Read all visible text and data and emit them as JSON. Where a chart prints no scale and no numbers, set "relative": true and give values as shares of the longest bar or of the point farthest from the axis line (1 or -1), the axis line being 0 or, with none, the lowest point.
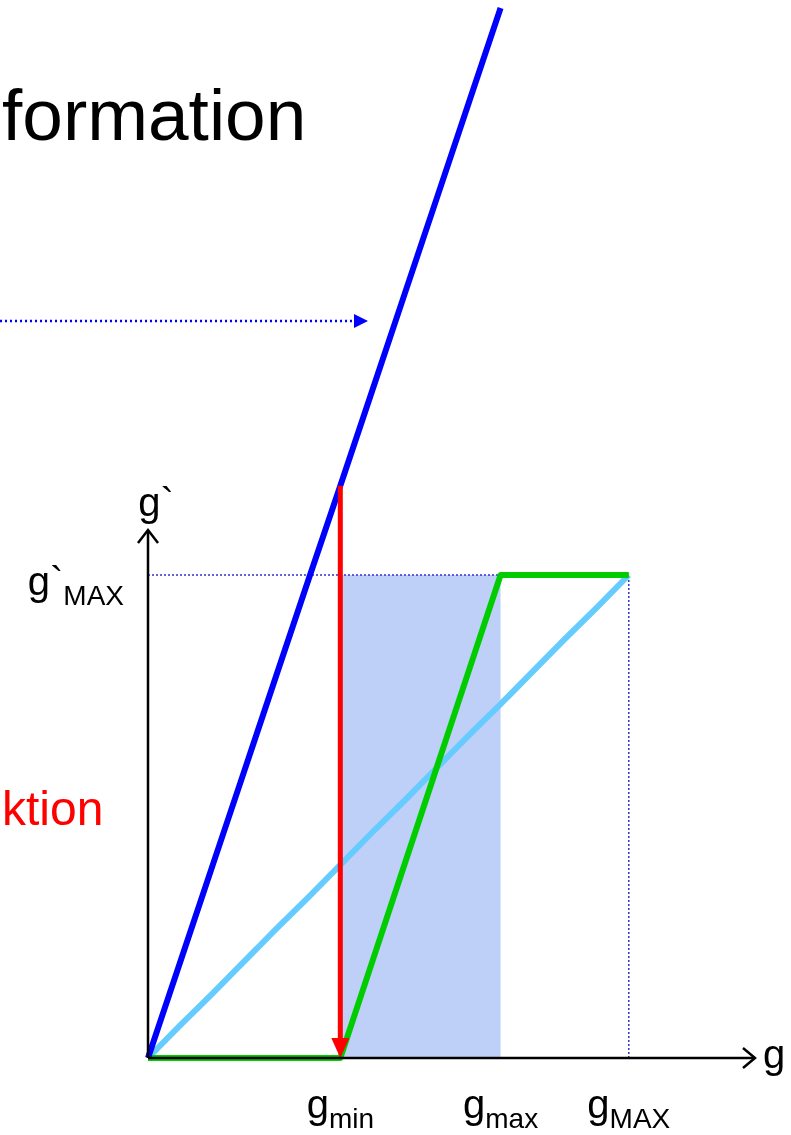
{
  "chart_data": {
    "type": "line",
    "title": "formation",
    "xlabel": "g",
    "ylabel": "g`",
    "relative": true,
    "categories": [
      null,
      null,
      null,
      null,
      null,
      null,
      "g$_{min}$",
      null,
      null,
      null,
      null,
      "g$_{max}$",
      null,
      null,
      null,
      "g$_{MAX}$",
      null,
      null,
      null,
      null
    ],
    "series": [
      {
        "type": "area",
        "color": "#bfd0f8",
        "values": [
          null,
          null,
          null,
          null,
          null,
          null,
          0.46,
          0.46,
          0.46,
          0.46,
          0.46,
          0.46,
          null,
          null,
          null,
          null,
          null,
          null,
          null,
          null
        ]
      },
      {
        "color": "#66ccff",
        "values": [
          0,
          0.031,
          0.061,
          0.092,
          0.123,
          0.153,
          0.184,
          0.215,
          0.245,
          0.276,
          0.307,
          0.337,
          0.368,
          0.399,
          0.429,
          0.46,
          null,
          null,
          null,
          null
        ]
      },
      {
        "color": "#00cc00",
        "values": [
          0,
          0,
          0,
          0,
          0,
          0,
          0,
          0.092,
          0.184,
          0.276,
          0.368,
          0.46,
          0.46,
          0.46,
          0.46,
          0.46,
          null,
          null,
          null,
          null
        ]
      },
      {
        "color": "#0000ff",
        "values": [
          0,
          0.091,
          0.182,
          0.273,
          0.364,
          0.455,
          0.545,
          0.636,
          0.727,
          0.818,
          0.909,
          1,
          null,
          null,
          null,
          null,
          null,
          null,
          null,
          null
        ]
      }
    ],
    "ref_lines": [
      {
        "axis": "y",
        "value": 0.46,
        "label": "g`$_{MAX}$",
        "color": "#3333cc",
        "line_style": "dotted"
      },
      {
        "axis": "x",
        "value": "g$_{MAX}$",
        "color": "#3333cc",
        "line_style": "dotted"
      }
    ],
    "annotations": [
      "ktion"
    ]
  }
}
